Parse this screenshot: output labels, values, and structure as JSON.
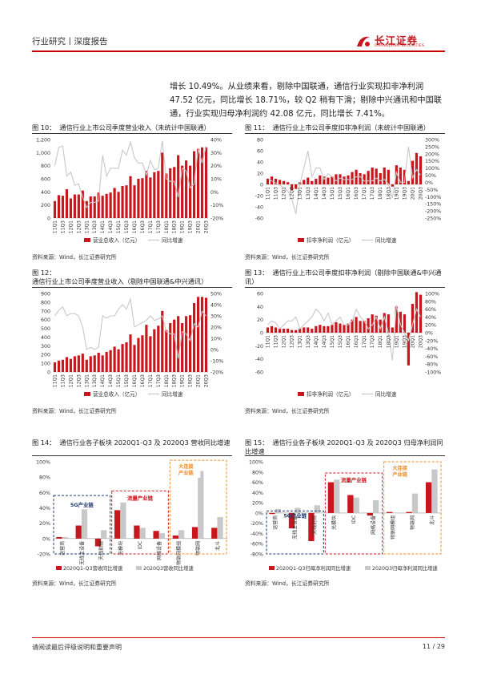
{
  "header": {
    "section": "行业研究丨深度报告",
    "logo_cn": "长江证券",
    "logo_en": "CHANGJIANG SECURITIES"
  },
  "paragraph": "增长 10.49%。从业绩来看，剔除中国联通，通信行业实现扣非净利润 47.52 亿元，同比增长 18.71%，较 Q2 稍有下滑；剔除中兴通讯和中国联通，行业实现归母净利润约 42.08 亿元，同比增长 7.41%。",
  "source": "资料来源：Wind，长江证券研究所",
  "footer": {
    "disclaimer": "请阅读最后评级说明和重要声明",
    "page": "11 / 29"
  },
  "colors": {
    "bar": "#c8161d",
    "line": "#c8c8c8",
    "gray_bar": "#c8c8c8",
    "box_blue": "#1f3a73",
    "box_red": "#c8161d",
    "box_orange": "#f08a24"
  },
  "figures": [
    {
      "no": "图 10：",
      "title": "通信行业上市公司季度营业收入（未统计中国联通）"
    },
    {
      "no": "图 11：",
      "title": "通信行业上市公司季度扣非净利润（未统计中国联通）"
    },
    {
      "no": "图 12：",
      "title": "通信行业上市公司季度营业收入（剔除中国联通&中兴通讯）"
    },
    {
      "no": "图 13：",
      "title": "通信行业上市公司季度扣非净利润（剔除中国联通&中兴通讯）"
    },
    {
      "no": "图 14：",
      "title": "通信行业各子板块 2020Q1-Q3 及 2020Q3 营收同比增速"
    },
    {
      "no": "图 15：",
      "title": "通信行业各子板块 2020Q1-Q3 及 2020Q3 归母净利润同比增速"
    }
  ],
  "chart_data": [
    {
      "type": "bar",
      "id": "fig10",
      "quarters": [
        "11Q1",
        "11Q2",
        "11Q3",
        "11Q4",
        "12Q1",
        "12Q2",
        "12Q3",
        "12Q4",
        "13Q1",
        "13Q2",
        "13Q3",
        "13Q4",
        "14Q1",
        "14Q2",
        "14Q3",
        "14Q4",
        "15Q1",
        "15Q2",
        "15Q3",
        "15Q4",
        "16Q1",
        "16Q2",
        "16Q3",
        "16Q4",
        "17Q1",
        "17Q2",
        "17Q3",
        "17Q4",
        "18Q1",
        "18Q2",
        "18Q3",
        "18Q4",
        "19Q1",
        "19Q2",
        "19Q3",
        "19Q4",
        "20Q1",
        "20Q2",
        "20Q3"
      ],
      "x_tick_labels": [
        "11Q1",
        "11Q3",
        "12Q1",
        "12Q3",
        "13Q1",
        "13Q3",
        "14Q1",
        "14Q3",
        "15Q1",
        "15Q3",
        "16Q1",
        "16Q3",
        "17Q1",
        "17Q3",
        "18Q1",
        "18Q3",
        "19Q1",
        "19Q3",
        "20Q1",
        "20Q3"
      ],
      "series": [
        {
          "name": "营业总收入（亿元）",
          "axis": "left",
          "kind": "bar",
          "values": [
            260,
            350,
            340,
            440,
            300,
            360,
            360,
            420,
            260,
            330,
            330,
            390,
            340,
            370,
            390,
            460,
            400,
            490,
            500,
            640,
            500,
            600,
            610,
            720,
            620,
            700,
            720,
            1000,
            680,
            760,
            780,
            960,
            800,
            880,
            800,
            1020,
            1060,
            1080,
            1080
          ]
        },
        {
          "name": "同比增速",
          "axis": "right",
          "kind": "line",
          "values": [
            0.2,
            0.34,
            0.35,
            0.12,
            0.15,
            0.05,
            0.06,
            -0.04,
            -0.12,
            -0.08,
            -0.08,
            -0.07,
            0.28,
            0.12,
            0.18,
            0.18,
            0.18,
            0.32,
            0.28,
            0.38,
            0.26,
            0.22,
            0.22,
            0.13,
            0.24,
            0.17,
            0.18,
            0.39,
            0.1,
            0.08,
            0.08,
            -0.04,
            0.18,
            0.16,
            0.03,
            0.06,
            0.33,
            0.22,
            0.35
          ]
        }
      ],
      "left_axis": {
        "min": 0,
        "max": 1200,
        "ticks": [
          "0",
          "200",
          "400",
          "600",
          "800",
          "1,000",
          "1,200"
        ]
      },
      "right_axis": {
        "min": -0.2,
        "max": 0.4,
        "ticks": [
          "-20%",
          "-10%",
          "0%",
          "10%",
          "20%",
          "30%",
          "40%"
        ]
      },
      "legend": [
        "营业总收入（亿元）",
        "同比增速"
      ]
    },
    {
      "type": "bar",
      "id": "fig11",
      "quarters": [
        "11Q1",
        "11Q2",
        "11Q3",
        "11Q4",
        "12Q1",
        "12Q2",
        "12Q3",
        "12Q4",
        "13Q1",
        "13Q2",
        "13Q3",
        "13Q4",
        "14Q1",
        "14Q2",
        "14Q3",
        "14Q4",
        "15Q1",
        "15Q2",
        "15Q3",
        "15Q4",
        "16Q1",
        "16Q2",
        "16Q3",
        "16Q4",
        "17Q1",
        "17Q2",
        "17Q3",
        "17Q4",
        "18Q1",
        "18Q2",
        "18Q3",
        "18Q4",
        "19Q1",
        "19Q2",
        "19Q3",
        "19Q4",
        "20Q1",
        "20Q2",
        "20Q3"
      ],
      "x_tick_labels": [
        "11Q1",
        "11Q3",
        "12Q1",
        "12Q3",
        "13Q1",
        "13Q3",
        "14Q1",
        "14Q3",
        "15Q1",
        "15Q3",
        "16Q1",
        "16Q3",
        "17Q1",
        "17Q3",
        "18Q1",
        "18Q3",
        "19Q1",
        "19Q3",
        "20Q1",
        "20Q3"
      ],
      "series": [
        {
          "name": "扣非净利润（亿元）",
          "axis": "left",
          "kind": "bar",
          "values": [
            10,
            14,
            10,
            8,
            6,
            4,
            -10,
            -8,
            4,
            8,
            12,
            6,
            10,
            16,
            14,
            12,
            14,
            18,
            18,
            14,
            16,
            22,
            26,
            20,
            18,
            24,
            30,
            28,
            20,
            30,
            26,
            -4,
            34,
            30,
            26,
            6,
            42,
            56,
            50
          ]
        },
        {
          "name": "同比增速",
          "axis": "right",
          "kind": "line",
          "values": [
            0.3,
            0.1,
            -0.05,
            -0.2,
            -0.4,
            -0.6,
            -1.2,
            -2.2,
            -0.1,
            1.0,
            2.2,
            0.4,
            1.0,
            1.0,
            0.2,
            0.6,
            0.4,
            0.1,
            0.3,
            0.2,
            0.2,
            0.2,
            0.4,
            0.4,
            0.1,
            0.1,
            0.1,
            0.3,
            0.1,
            0.2,
            -0.1,
            -1.1,
            0.7,
            0.0,
            0.0,
            2.5,
            0.3,
            0.9,
            0.5
          ]
        }
      ],
      "left_axis": {
        "min": -60,
        "max": 80,
        "ticks": [
          "-60",
          "-40",
          "-20",
          "0",
          "20",
          "40",
          "60",
          "80"
        ]
      },
      "right_axis": {
        "min": -2.5,
        "max": 3.0,
        "ticks": [
          "-250%",
          "-200%",
          "-150%",
          "-100%",
          "-50%",
          "0%",
          "50%",
          "100%",
          "150%",
          "200%",
          "250%",
          "300%"
        ]
      },
      "legend": [
        "扣非净利润（亿元）",
        "同比增速"
      ]
    },
    {
      "type": "bar",
      "id": "fig12",
      "quarters": [
        "11Q1",
        "11Q2",
        "11Q3",
        "11Q4",
        "12Q1",
        "12Q2",
        "12Q3",
        "12Q4",
        "13Q1",
        "13Q2",
        "13Q3",
        "13Q4",
        "14Q1",
        "14Q2",
        "14Q3",
        "14Q4",
        "15Q1",
        "15Q2",
        "15Q3",
        "15Q4",
        "16Q1",
        "16Q2",
        "16Q3",
        "16Q4",
        "17Q1",
        "17Q2",
        "17Q3",
        "17Q4",
        "18Q1",
        "18Q2",
        "18Q3",
        "18Q4",
        "19Q1",
        "19Q2",
        "19Q3",
        "19Q4",
        "20Q1",
        "20Q2",
        "20Q3"
      ],
      "x_tick_labels": [
        "11Q1",
        "11Q3",
        "12Q1",
        "12Q3",
        "13Q1",
        "13Q3",
        "14Q1",
        "14Q3",
        "15Q1",
        "15Q3",
        "16Q1",
        "16Q3",
        "17Q1",
        "17Q3",
        "18Q1",
        "18Q3",
        "19Q1",
        "19Q3",
        "20Q1",
        "20Q3"
      ],
      "series": [
        {
          "name": "营业总收入（亿元）",
          "axis": "left",
          "kind": "bar",
          "values": [
            110,
            130,
            140,
            170,
            150,
            180,
            190,
            210,
            140,
            180,
            190,
            220,
            190,
            230,
            250,
            290,
            260,
            320,
            340,
            430,
            310,
            390,
            420,
            540,
            410,
            490,
            530,
            700,
            480,
            560,
            600,
            640,
            560,
            640,
            650,
            790,
            860,
            860,
            850
          ]
        },
        {
          "name": "同比增速",
          "axis": "right",
          "kind": "line",
          "values": [
            0.3,
            0.35,
            0.38,
            0.3,
            0.32,
            0.32,
            0.3,
            0.2,
            0.0,
            0.02,
            0.0,
            0.02,
            0.3,
            0.28,
            0.3,
            0.3,
            0.36,
            0.4,
            0.36,
            0.45,
            0.2,
            0.22,
            0.24,
            0.26,
            0.3,
            0.26,
            0.27,
            0.3,
            0.16,
            0.14,
            0.14,
            -0.08,
            0.16,
            0.14,
            0.08,
            0.23,
            0.2,
            0.34,
            0.3
          ]
        }
      ],
      "left_axis": {
        "min": 0,
        "max": 900,
        "ticks": [
          "0",
          "100",
          "200",
          "300",
          "400",
          "500",
          "600",
          "700",
          "800",
          "900"
        ]
      },
      "right_axis": {
        "min": -0.2,
        "max": 0.5,
        "ticks": [
          "-20%",
          "-10%",
          "0%",
          "10%",
          "20%",
          "30%",
          "40%",
          "50%"
        ]
      },
      "legend": [
        "营业总收入（亿元）",
        "同比增速"
      ]
    },
    {
      "type": "bar",
      "id": "fig13",
      "quarters": [
        "11Q1",
        "11Q2",
        "11Q3",
        "11Q4",
        "12Q1",
        "12Q2",
        "12Q3",
        "12Q4",
        "13Q1",
        "13Q2",
        "13Q3",
        "13Q4",
        "14Q1",
        "14Q2",
        "14Q3",
        "14Q4",
        "15Q1",
        "15Q2",
        "15Q3",
        "15Q4",
        "16Q1",
        "16Q2",
        "16Q3",
        "16Q4",
        "17Q1",
        "17Q2",
        "17Q3",
        "17Q4",
        "18Q1",
        "18Q2",
        "18Q3",
        "18Q4",
        "19Q1",
        "19Q2",
        "19Q3",
        "19Q4",
        "20Q1",
        "20Q2",
        "20Q3"
      ],
      "x_tick_labels": [
        "11Q1",
        "11Q3",
        "12Q1",
        "12Q3",
        "13Q1",
        "13Q3",
        "14Q1",
        "14Q3",
        "15Q1",
        "15Q3",
        "16Q1",
        "16Q3",
        "17Q1",
        "17Q3",
        "18Q1",
        "18Q3",
        "19Q1",
        "19Q3",
        "20Q1",
        "20Q3"
      ],
      "series": [
        {
          "name": "扣非净利润（亿元）",
          "axis": "left",
          "kind": "bar",
          "values": [
            8,
            10,
            8,
            6,
            6,
            6,
            4,
            4,
            6,
            8,
            8,
            6,
            10,
            12,
            10,
            10,
            12,
            16,
            14,
            12,
            14,
            20,
            24,
            18,
            18,
            22,
            28,
            26,
            20,
            30,
            28,
            8,
            40,
            32,
            28,
            -50,
            44,
            62,
            58
          ]
        },
        {
          "name": "同比增速",
          "axis": "right",
          "kind": "line",
          "values": [
            0.2,
            0.3,
            0.25,
            0.1,
            0.2,
            0.3,
            0.3,
            0.4,
            0.1,
            0.2,
            0.3,
            0.4,
            0.6,
            0.5,
            0.3,
            0.5,
            0.2,
            0.3,
            0.4,
            0.2,
            0.2,
            0.3,
            0.6,
            0.4,
            0.3,
            0.1,
            0.2,
            0.4,
            0.1,
            0.4,
            0.0,
            -0.7,
            0.7,
            0.2,
            0.0,
            -0.2,
            0.2,
            0.6,
            0.4
          ]
        }
      ],
      "left_axis": {
        "min": -60,
        "max": 60,
        "ticks": [
          "-60",
          "-40",
          "-20",
          "0",
          "20",
          "40",
          "60"
        ]
      },
      "right_axis": {
        "min": -1.0,
        "max": 1.0,
        "ticks": [
          "-100%",
          "-80%",
          "-60%",
          "-40%",
          "-20%",
          "0%",
          "20%",
          "40%",
          "60%",
          "80%",
          "100%"
        ]
      },
      "legend": [
        "扣非净利润（亿元）",
        "同比增速"
      ]
    },
    {
      "type": "bar",
      "id": "fig14",
      "categories": [
        "运营商",
        "无线主设备",
        "天线射频",
        "光模块",
        "IDC",
        "网络设备",
        "物联网模组",
        "物联网",
        "北斗"
      ],
      "series": [
        {
          "name": "2020Q1-Q3营收同比增速",
          "values": [
            0.02,
            0.17,
            -0.1,
            0.37,
            0.17,
            0.1,
            0.04,
            0.15,
            0.14
          ]
        },
        {
          "name": "2020Q3营收同比增速",
          "values": [
            0.02,
            0.38,
            0.11,
            0.47,
            0.14,
            0.07,
            0.11,
            0.88,
            0.28
          ]
        }
      ],
      "y_axis": {
        "min": -0.2,
        "max": 1.0,
        "ticks": [
          "-20%",
          "0%",
          "20%",
          "40%",
          "60%",
          "80%",
          "100%"
        ]
      },
      "groups": [
        {
          "label": "5G产业链"
        },
        {
          "label": "流量产业链"
        },
        {
          "label": "大连接产业链"
        }
      ],
      "legend": [
        "2020Q1-Q3营收同比增速",
        "2020Q3营收同比增速"
      ]
    },
    {
      "type": "bar",
      "id": "fig15",
      "categories": [
        "运营商",
        "无线主设备",
        "天线射频",
        "光模块",
        "IDC",
        "网络设备",
        "物联网模组",
        "物联网",
        "北斗"
      ],
      "series": [
        {
          "name": "2020Q1-Q3归母净利润同比增速",
          "values": [
            -0.02,
            -0.3,
            -0.55,
            0.6,
            0.35,
            -0.05,
            0.02,
            0.02,
            0.6
          ]
        },
        {
          "name": "2020Q3归母净利润同比增速",
          "values": [
            0.08,
            0.1,
            0.15,
            0.65,
            0.3,
            0.25,
            0.01,
            0.38,
            0.85
          ]
        }
      ],
      "y_axis": {
        "min": -0.8,
        "max": 1.0,
        "ticks": [
          "-80%",
          "-60%",
          "-40%",
          "-20%",
          "0%",
          "20%",
          "40%",
          "60%",
          "80%",
          "100%"
        ]
      },
      "groups": [
        {
          "label": "5G产业链"
        },
        {
          "label": "流量产业链"
        },
        {
          "label": "大连接产业链"
        }
      ],
      "legend": [
        "2020Q1-Q3归母净利润同比增速",
        "2020Q3归母净利润同比增速"
      ]
    }
  ]
}
